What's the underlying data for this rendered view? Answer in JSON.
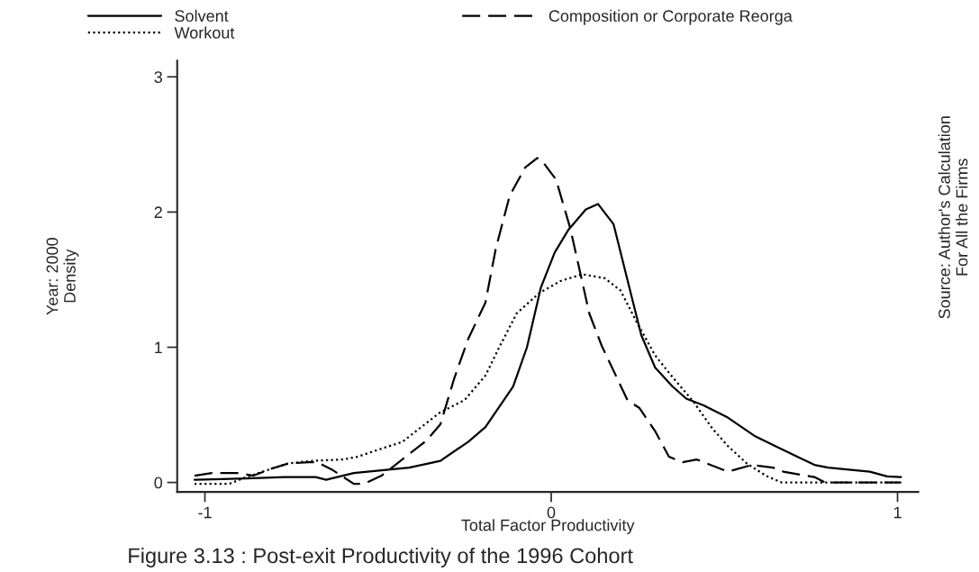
{
  "chart_data": {
    "type": "line",
    "title": "Figure 3.13 : Post-exit Productivity of the 1996 Cohort",
    "xlabel": "Total Factor Productivity",
    "ylabel": "Year: 2000\nDensity",
    "annotations": [
      "Source: Author's Calculation\nFor All the Firms"
    ],
    "xlim": [
      -1.08,
      1.06
    ],
    "ylim": [
      -0.07,
      3.12
    ],
    "xticks": [
      -1,
      0,
      1
    ],
    "yticks": [
      0,
      1,
      2,
      3
    ],
    "grid": false,
    "legend": "top",
    "marker": "none",
    "series": [
      {
        "name": "Solvent",
        "color": "#000000",
        "line_style": "solid",
        "x": [
          -1.03,
          -0.88,
          -0.77,
          -0.68,
          -0.65,
          -0.57,
          -0.49,
          -0.41,
          -0.32,
          -0.24,
          -0.19,
          -0.11,
          -0.07,
          -0.03,
          0.01,
          0.05,
          0.1,
          0.135,
          0.18,
          0.22,
          0.26,
          0.3,
          0.35,
          0.39,
          0.44,
          0.51,
          0.59,
          0.67,
          0.76,
          0.8,
          0.92,
          0.97,
          1.01
        ],
        "values": [
          0.02,
          0.03,
          0.04,
          0.04,
          0.02,
          0.07,
          0.09,
          0.11,
          0.16,
          0.3,
          0.41,
          0.71,
          1.0,
          1.44,
          1.7,
          1.87,
          2.02,
          2.06,
          1.91,
          1.5,
          1.09,
          0.85,
          0.71,
          0.62,
          0.57,
          0.48,
          0.34,
          0.24,
          0.13,
          0.11,
          0.08,
          0.045,
          0.04
        ]
      },
      {
        "name": "Composition or Corporate Reorga",
        "color": "#000000",
        "line_style": "dashed",
        "x": [
          -1.03,
          -0.98,
          -0.9,
          -0.86,
          -0.81,
          -0.76,
          -0.7,
          -0.675,
          -0.63,
          -0.57,
          -0.54,
          -0.49,
          -0.46,
          -0.36,
          -0.32,
          -0.28,
          -0.24,
          -0.19,
          -0.16,
          -0.12,
          -0.075,
          -0.04,
          -0.027,
          0.014,
          0.055,
          0.09,
          0.11,
          0.146,
          0.22,
          0.255,
          0.3,
          0.34,
          0.38,
          0.42,
          0.51,
          0.58,
          0.64,
          0.67,
          0.76,
          0.79,
          1.01
        ],
        "values": [
          0.05,
          0.07,
          0.07,
          0.05,
          0.1,
          0.14,
          0.15,
          0.15,
          0.09,
          -0.01,
          -0.01,
          0.05,
          0.11,
          0.31,
          0.43,
          0.77,
          1.06,
          1.33,
          1.73,
          2.12,
          2.33,
          2.4,
          2.38,
          2.24,
          1.88,
          1.48,
          1.25,
          1.01,
          0.61,
          0.55,
          0.38,
          0.19,
          0.15,
          0.17,
          0.08,
          0.13,
          0.11,
          0.08,
          0.04,
          0.0,
          0.0
        ]
      },
      {
        "name": "Workout",
        "color": "#000000",
        "line_style": "dotted",
        "x": [
          -1.03,
          -0.93,
          -0.88,
          -0.81,
          -0.76,
          -0.69,
          -0.6,
          -0.56,
          -0.49,
          -0.43,
          -0.37,
          -0.32,
          -0.25,
          -0.19,
          -0.15,
          -0.1,
          -0.035,
          0.027,
          0.09,
          0.155,
          0.2,
          0.246,
          0.3,
          0.35,
          0.41,
          0.465,
          0.51,
          0.565,
          0.62,
          0.665,
          1.01
        ],
        "values": [
          -0.01,
          -0.01,
          0.04,
          0.1,
          0.14,
          0.16,
          0.17,
          0.19,
          0.25,
          0.3,
          0.42,
          0.52,
          0.61,
          0.79,
          1.0,
          1.25,
          1.4,
          1.49,
          1.54,
          1.51,
          1.42,
          1.19,
          0.94,
          0.78,
          0.6,
          0.4,
          0.27,
          0.14,
          0.05,
          0.0,
          0.0
        ]
      }
    ]
  }
}
